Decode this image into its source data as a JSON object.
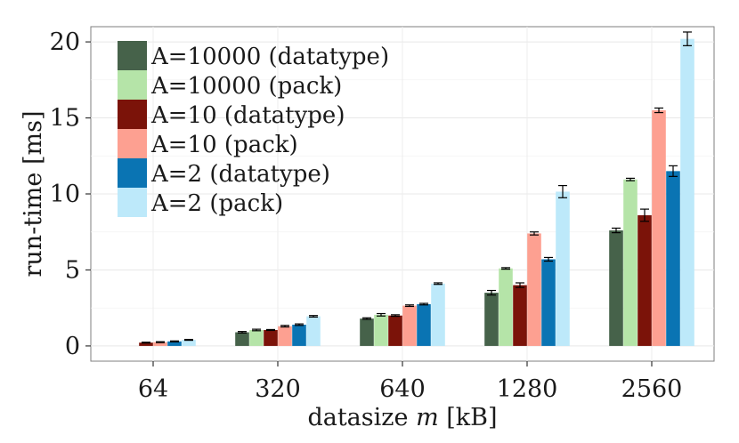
{
  "chart_data": {
    "type": "bar",
    "title": "",
    "xlabel_prefix": "datasize ",
    "xlabel_var": "m",
    "xlabel_suffix": " [kB]",
    "ylabel": "run-time [ms]",
    "ylim": [
      -1,
      21
    ],
    "yticks": [
      0,
      5,
      10,
      15,
      20
    ],
    "grid": true,
    "legend_position": "top-left",
    "categories": [
      "64",
      "320",
      "640",
      "1280",
      "2560"
    ],
    "series": [
      {
        "name": "A=10000 (datatype)",
        "color": "#46624a",
        "values": [
          null,
          0.9,
          1.8,
          3.5,
          7.6
        ],
        "errors": [
          null,
          0.05,
          0.05,
          0.15,
          0.15
        ]
      },
      {
        "name": "A=10000 (pack)",
        "color": "#b5e4a8",
        "values": [
          null,
          1.05,
          2.05,
          5.1,
          10.95
        ],
        "errors": [
          null,
          0.05,
          0.08,
          0.05,
          0.08
        ]
      },
      {
        "name": "A=10 (datatype)",
        "color": "#7b1309",
        "values": [
          0.22,
          1.05,
          2.0,
          4.0,
          8.6
        ],
        "errors": [
          0.03,
          0.03,
          0.05,
          0.15,
          0.4
        ]
      },
      {
        "name": "A=10 (pack)",
        "color": "#fda091",
        "values": [
          0.25,
          1.3,
          2.65,
          7.4,
          15.5
        ],
        "errors": [
          0.03,
          0.05,
          0.05,
          0.1,
          0.15
        ]
      },
      {
        "name": "A=2 (datatype)",
        "color": "#0a74b3",
        "values": [
          0.3,
          1.4,
          2.75,
          5.7,
          11.5
        ],
        "errors": [
          0.03,
          0.05,
          0.05,
          0.12,
          0.35
        ]
      },
      {
        "name": "A=2 (pack)",
        "color": "#bde9fa",
        "values": [
          0.4,
          1.95,
          4.1,
          10.15,
          20.2
        ],
        "errors": [
          0.03,
          0.05,
          0.05,
          0.4,
          0.45
        ]
      }
    ]
  }
}
